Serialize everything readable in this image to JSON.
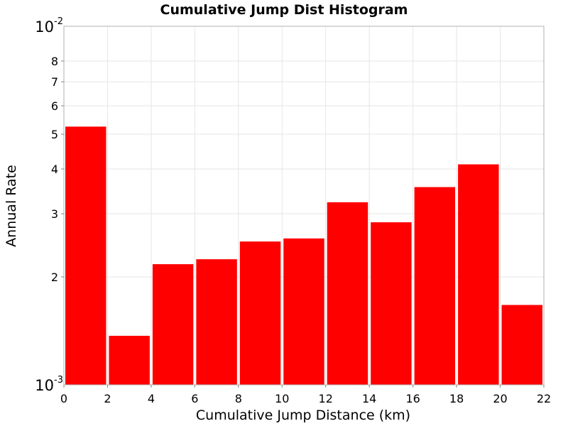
{
  "chart_data": {
    "type": "bar",
    "title": "Cumulative Jump Dist Histogram",
    "xlabel": "Cumulative Jump Distance (km)",
    "ylabel": "Annual Rate",
    "xlim": [
      0,
      22
    ],
    "ylim": [
      0.001,
      0.01
    ],
    "yscale": "log",
    "grid": true,
    "color": "#ff0000",
    "x_ticks": [
      "0",
      "2",
      "4",
      "6",
      "8",
      "10",
      "12",
      "14",
      "16",
      "18",
      "20",
      "22"
    ],
    "y_minor_ticks": [
      {
        "value": 0.002,
        "label": "2"
      },
      {
        "value": 0.003,
        "label": "3"
      },
      {
        "value": 0.004,
        "label": "4"
      },
      {
        "value": 0.005,
        "label": "5"
      },
      {
        "value": 0.006,
        "label": "6"
      },
      {
        "value": 0.007,
        "label": "7"
      },
      {
        "value": 0.008,
        "label": "8"
      }
    ],
    "y_major_ticks": [
      {
        "value": 0.001,
        "base": "10",
        "exp": "-3"
      },
      {
        "value": 0.01,
        "base": "10",
        "exp": "-2"
      }
    ],
    "bins": [
      {
        "x0": 0,
        "x1": 2,
        "value": 0.00525
      },
      {
        "x0": 2,
        "x1": 4,
        "value": 0.00137
      },
      {
        "x0": 4,
        "x1": 6,
        "value": 0.00217
      },
      {
        "x0": 6,
        "x1": 8,
        "value": 0.00224
      },
      {
        "x0": 8,
        "x1": 10,
        "value": 0.00251
      },
      {
        "x0": 10,
        "x1": 12,
        "value": 0.00256
      },
      {
        "x0": 12,
        "x1": 14,
        "value": 0.00323
      },
      {
        "x0": 14,
        "x1": 16,
        "value": 0.00284
      },
      {
        "x0": 16,
        "x1": 18,
        "value": 0.00356
      },
      {
        "x0": 18,
        "x1": 20,
        "value": 0.00412
      },
      {
        "x0": 20,
        "x1": 22,
        "value": 0.00167
      }
    ]
  }
}
